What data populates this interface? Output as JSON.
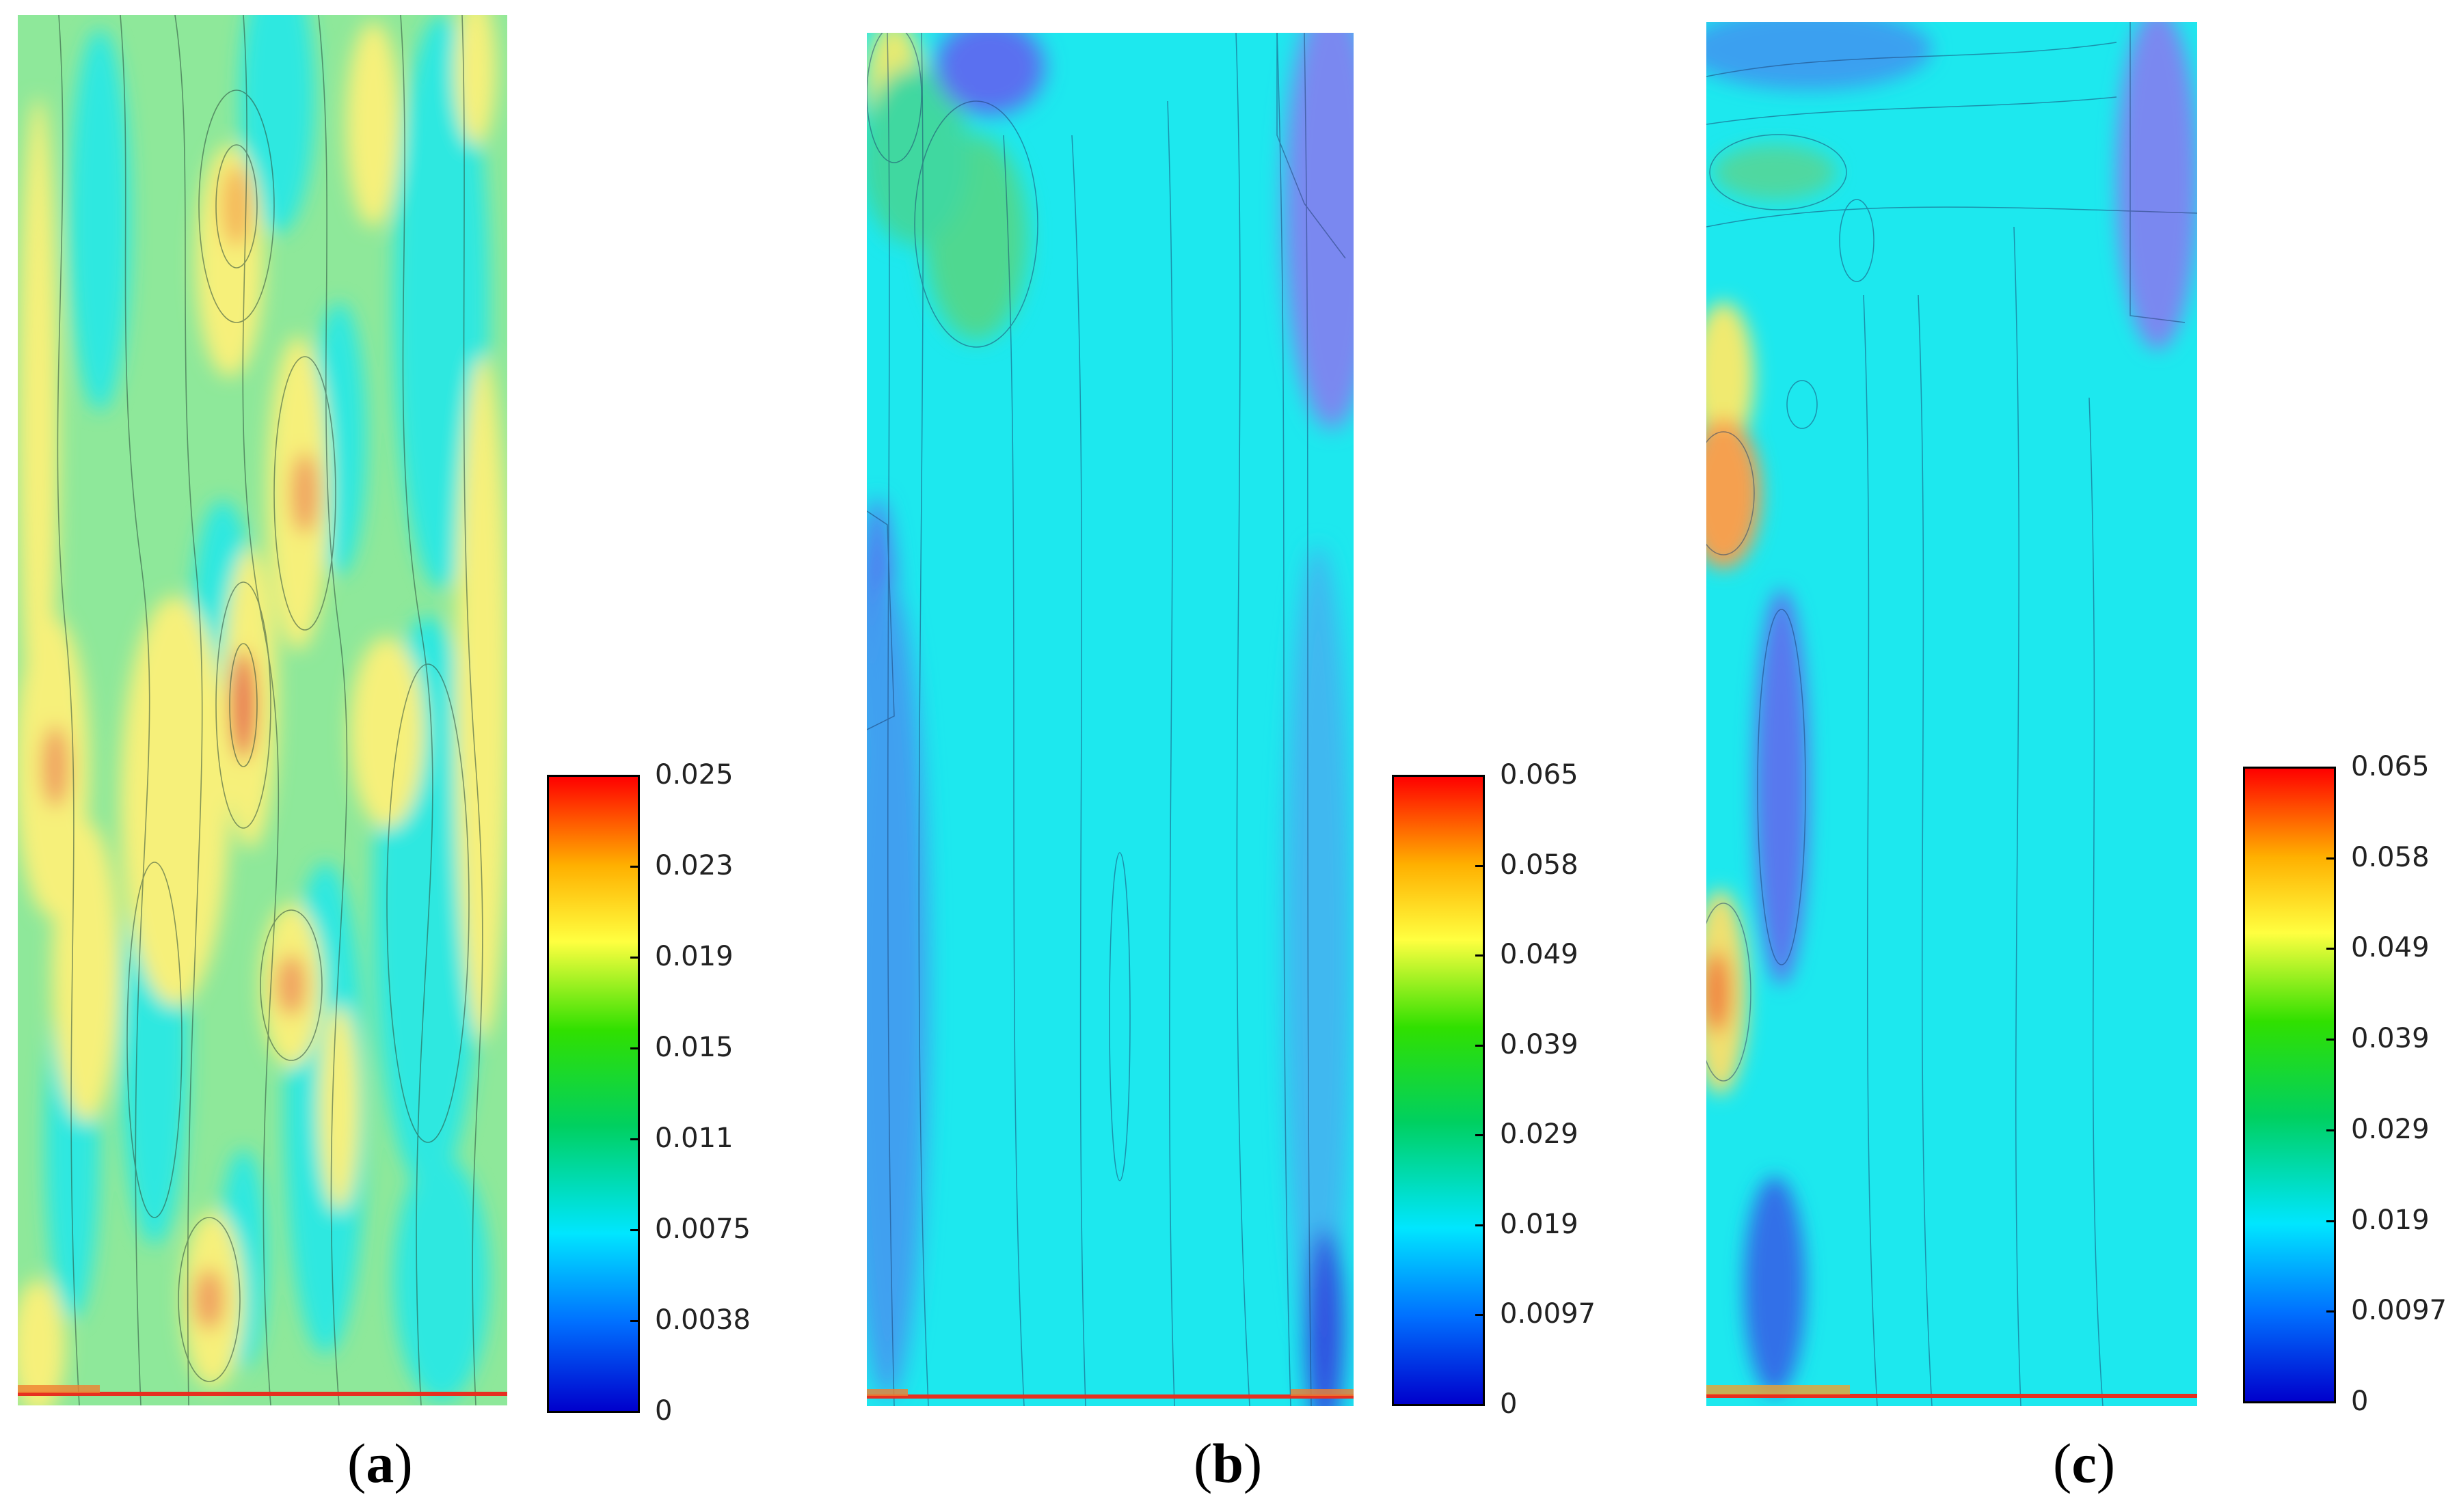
{
  "chart_data": [
    {
      "type": "heatmap",
      "panel": "a",
      "caption_open": "(",
      "caption_letter": "a",
      "caption_close": ")",
      "colorbar": {
        "min": 0,
        "max": 0.025,
        "ticks": [
          "0.025",
          "0.023",
          "0.019",
          "0.015",
          "0.011",
          "0.0075",
          "0.0038",
          "0"
        ],
        "tick_values": [
          0.025,
          0.023,
          0.019,
          0.015,
          0.011,
          0.0075,
          0.0038,
          0
        ]
      },
      "colormap": [
        "#0000cc",
        "#0070ff",
        "#00e6ff",
        "#00d060",
        "#30e000",
        "#ffff40",
        "#ffb000",
        "#ff0000"
      ],
      "background_level": 0.0075
    },
    {
      "type": "heatmap",
      "panel": "b",
      "caption_open": "(",
      "caption_letter": "b",
      "caption_close": ")",
      "colorbar": {
        "min": 0,
        "max": 0.065,
        "ticks": [
          "0.065",
          "0.058",
          "0.049",
          "0.039",
          "0.029",
          "0.019",
          "0.0097",
          "0"
        ],
        "tick_values": [
          0.065,
          0.058,
          0.049,
          0.039,
          0.029,
          0.019,
          0.0097,
          0
        ]
      },
      "colormap": [
        "#0000cc",
        "#0070ff",
        "#00e6ff",
        "#00d060",
        "#30e000",
        "#ffff40",
        "#ffb000",
        "#ff0000"
      ],
      "background_level": 0.019
    },
    {
      "type": "heatmap",
      "panel": "c",
      "caption_open": "(",
      "caption_letter": "c",
      "caption_close": ")",
      "colorbar": {
        "min": 0,
        "max": 0.065,
        "ticks": [
          "0.065",
          "0.058",
          "0.049",
          "0.039",
          "0.029",
          "0.019",
          "0.0097",
          "0"
        ],
        "tick_values": [
          0.065,
          0.058,
          0.049,
          0.039,
          0.029,
          0.019,
          0.0097,
          0
        ]
      },
      "colormap": [
        "#0000cc",
        "#0070ff",
        "#00e6ff",
        "#00d060",
        "#30e000",
        "#ffff40",
        "#ffb000",
        "#ff0000"
      ],
      "background_level": 0.019
    }
  ]
}
